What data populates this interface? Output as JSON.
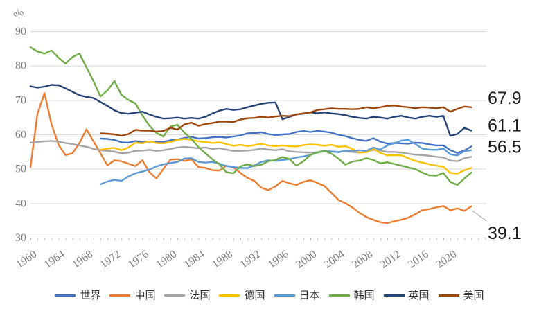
{
  "chart_data": {
    "type": "line",
    "title": "",
    "ylabel": "%",
    "ylim": [
      30,
      90
    ],
    "yticks": [
      30,
      40,
      50,
      60,
      70,
      80,
      90
    ],
    "x_range": [
      1960,
      2023
    ],
    "xtick_labeled_years": [
      1960,
      1964,
      1968,
      1972,
      1976,
      1980,
      1984,
      1988,
      1992,
      1996,
      2000,
      2004,
      2008,
      2012,
      2016,
      2020
    ],
    "grid": "horizontal",
    "legend_position": "bottom",
    "colors": {
      "grid": "#d9d9d9",
      "axis": "#bfbfbf",
      "axis_text": "#7f7f7f",
      "annotation_text": "#1a1a1a"
    },
    "series": [
      {
        "key": "world",
        "name": "世界",
        "color": "#4472C4",
        "start_year": 1970,
        "values": [
          58.8,
          58.7,
          58.4,
          57.7,
          57.6,
          58.1,
          57.7,
          57.9,
          57.9,
          57.8,
          58.3,
          58.5,
          59.0,
          59.3,
          58.8,
          58.9,
          59.2,
          59.3,
          59.1,
          59.4,
          59.7,
          60.3,
          60.4,
          60.6,
          60.1,
          59.8,
          60.0,
          60.1,
          60.7,
          61.0,
          60.7,
          61.0,
          60.8,
          60.5,
          59.9,
          59.5,
          58.9,
          58.4,
          58.1,
          58.9,
          57.9,
          57.3,
          57.5,
          57.4,
          57.3,
          57.6,
          57.5,
          57.1,
          56.8,
          56.8,
          55.4,
          54.6,
          55.3,
          56.5
        ]
      },
      {
        "key": "china",
        "name": "中国",
        "color": "#ED7D31",
        "start_year": 1960,
        "values": [
          50.5,
          66.0,
          72.0,
          63.0,
          57.0,
          54.0,
          54.5,
          57.5,
          61.5,
          58.0,
          54.5,
          51.0,
          52.5,
          52.2,
          51.5,
          50.8,
          52.5,
          49.0,
          47.2,
          50.0,
          52.7,
          52.8,
          52.3,
          52.8,
          50.5,
          50.3,
          49.6,
          49.5,
          50.9,
          50.5,
          48.8,
          47.4,
          46.5,
          44.5,
          43.8,
          44.9,
          46.5,
          45.8,
          45.3,
          46.2,
          46.7,
          45.9,
          45.0,
          43.0,
          41.0,
          40.0,
          38.8,
          37.2,
          36.0,
          35.2,
          34.5,
          34.2,
          34.8,
          35.2,
          35.8,
          36.8,
          38.0,
          38.3,
          38.8,
          39.2,
          38.0,
          38.5,
          37.8,
          39.1
        ]
      },
      {
        "key": "france",
        "name": "法国",
        "color": "#A5A5A5",
        "start_year": 1960,
        "values": [
          57.6,
          57.8,
          58.0,
          58.1,
          57.9,
          57.5,
          57.2,
          56.8,
          56.4,
          55.8,
          55.4,
          55.2,
          55.0,
          54.5,
          54.7,
          55.2,
          55.3,
          55.5,
          55.2,
          55.4,
          55.8,
          56.2,
          56.4,
          56.2,
          56.0,
          56.2,
          55.8,
          56.0,
          55.6,
          55.2,
          55.2,
          55.3,
          55.5,
          55.9,
          55.6,
          55.4,
          55.7,
          55.1,
          54.9,
          54.8,
          54.7,
          54.8,
          55.0,
          55.1,
          54.9,
          55.1,
          54.9,
          54.7,
          54.9,
          55.5,
          55.3,
          54.9,
          54.9,
          54.7,
          54.4,
          54.1,
          54.0,
          53.8,
          53.5,
          53.3,
          52.4,
          52.2,
          53.1,
          53.5
        ]
      },
      {
        "key": "germany",
        "name": "德国",
        "color": "#FFC000",
        "start_year": 1970,
        "values": [
          55.5,
          55.9,
          56.1,
          55.4,
          56.2,
          57.6,
          57.4,
          58.0,
          57.5,
          57.4,
          57.8,
          58.4,
          58.7,
          58.4,
          58.0,
          57.8,
          57.5,
          57.7,
          57.2,
          56.7,
          57.0,
          56.6,
          56.9,
          57.3,
          56.8,
          56.6,
          56.8,
          56.6,
          56.5,
          56.9,
          57.1,
          57.0,
          56.7,
          57.0,
          56.4,
          56.6,
          55.8,
          54.7,
          54.8,
          55.8,
          54.6,
          53.9,
          54.0,
          53.9,
          53.1,
          52.3,
          51.8,
          51.3,
          50.9,
          50.6,
          48.8,
          48.6,
          49.6,
          50.3
        ]
      },
      {
        "key": "japan",
        "name": "日本",
        "color": "#5B9BD5",
        "start_year": 1970,
        "values": [
          45.5,
          46.3,
          46.8,
          46.5,
          47.8,
          48.7,
          49.2,
          49.8,
          50.7,
          51.3,
          51.7,
          52.0,
          53.0,
          53.1,
          52.0,
          51.8,
          52.0,
          51.5,
          50.8,
          50.5,
          50.3,
          50.2,
          51.0,
          52.0,
          52.5,
          52.3,
          52.6,
          52.8,
          53.3,
          53.6,
          54.0,
          54.8,
          55.2,
          55.0,
          54.8,
          55.3,
          55.2,
          55.4,
          55.2,
          56.2,
          55.6,
          56.8,
          57.4,
          58.2,
          58.4,
          57.2,
          55.9,
          55.6,
          55.5,
          55.9,
          54.2,
          53.9,
          55.1,
          55.4
        ]
      },
      {
        "key": "korea",
        "name": "韩国",
        "color": "#70AD47",
        "start_year": 1960,
        "values": [
          85.3,
          84.1,
          83.5,
          84.4,
          82.3,
          80.6,
          82.5,
          83.5,
          79.5,
          75.5,
          71.0,
          72.8,
          75.5,
          71.5,
          70.0,
          69.0,
          65.5,
          62.5,
          60.4,
          59.4,
          62.3,
          62.8,
          60.5,
          58.7,
          56.3,
          54.5,
          52.8,
          51.3,
          49.0,
          48.7,
          50.7,
          51.3,
          50.8,
          51.2,
          52.2,
          52.6,
          53.4,
          52.9,
          50.9,
          52.2,
          54.0,
          54.7,
          55.2,
          54.4,
          53.0,
          51.2,
          52.1,
          52.4,
          53.1,
          52.6,
          51.6,
          51.9,
          51.4,
          50.9,
          50.4,
          49.9,
          48.9,
          48.1,
          48.0,
          48.8,
          46.2,
          45.3,
          47.2,
          48.9
        ]
      },
      {
        "key": "uk",
        "name": "英国",
        "color": "#264478",
        "start_year": 1960,
        "values": [
          74.0,
          73.6,
          73.9,
          74.4,
          74.3,
          73.4,
          72.4,
          71.4,
          70.9,
          70.6,
          69.4,
          68.3,
          67.0,
          66.2,
          66.0,
          66.3,
          66.6,
          65.8,
          65.1,
          64.6,
          64.7,
          64.9,
          64.6,
          64.8,
          64.6,
          65.1,
          66.1,
          66.9,
          67.4,
          67.1,
          67.3,
          67.9,
          68.4,
          68.9,
          69.2,
          69.3,
          64.4,
          65.1,
          65.8,
          66.0,
          66.4,
          66.1,
          66.4,
          66.1,
          65.9,
          65.6,
          65.1,
          64.8,
          64.6,
          65.1,
          64.9,
          64.6,
          65.1,
          65.4,
          64.9,
          64.6,
          65.1,
          65.4,
          65.1,
          65.4,
          59.6,
          60.1,
          61.9,
          61.1
        ]
      },
      {
        "key": "usa",
        "name": "美国",
        "color": "#9E480E",
        "start_year": 1970,
        "values": [
          60.3,
          60.2,
          60.0,
          59.6,
          60.1,
          61.3,
          61.1,
          61.1,
          60.8,
          61.0,
          61.9,
          61.4,
          62.9,
          63.4,
          62.5,
          63.0,
          63.3,
          63.7,
          63.7,
          63.6,
          64.3,
          64.7,
          64.8,
          65.1,
          64.9,
          65.2,
          65.4,
          65.3,
          65.8,
          66.1,
          66.4,
          67.1,
          67.3,
          67.6,
          67.4,
          67.4,
          67.3,
          67.4,
          67.9,
          67.6,
          67.9,
          68.3,
          68.4,
          68.1,
          67.9,
          67.6,
          67.9,
          67.8,
          67.6,
          67.9,
          66.6,
          67.4,
          68.1,
          67.9
        ]
      },
      {
        "key": "legend_only",
        "name": "",
        "color": "",
        "start_year": 0,
        "values": []
      }
    ],
    "annotations": [
      {
        "series_key": "usa",
        "text": "67.9",
        "value": 67.9,
        "dy": -5,
        "leader": false
      },
      {
        "series_key": "uk",
        "text": "61.1",
        "value": 61.1,
        "dy": 1,
        "leader": false
      },
      {
        "series_key": "world",
        "text": "56.5",
        "value": 56.5,
        "dy": 9,
        "leader": false
      },
      {
        "series_key": "china",
        "text": "39.1",
        "value": 39.1,
        "dy": 47,
        "leader": true
      }
    ],
    "legend_items": [
      {
        "key": "world",
        "label": "世界",
        "color": "#4472C4"
      },
      {
        "key": "china",
        "label": "中国",
        "color": "#ED7D31"
      },
      {
        "key": "france",
        "label": "法国",
        "color": "#A5A5A5"
      },
      {
        "key": "germany",
        "label": "德国",
        "color": "#FFC000"
      },
      {
        "key": "japan",
        "label": "日本",
        "color": "#5B9BD5"
      },
      {
        "key": "korea",
        "label": "韩国",
        "color": "#70AD47"
      },
      {
        "key": "uk",
        "label": "英国",
        "color": "#264478"
      },
      {
        "key": "usa",
        "label": "美国",
        "color": "#9E480E"
      }
    ]
  }
}
